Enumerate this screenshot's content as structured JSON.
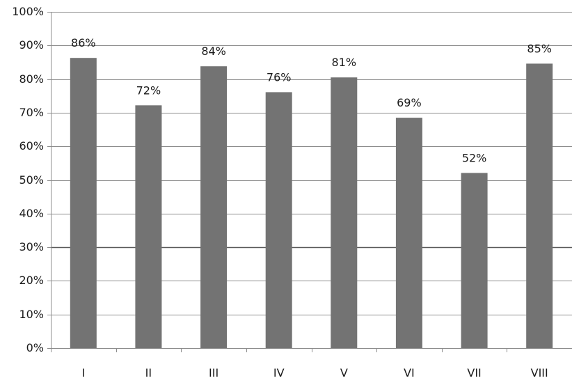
{
  "chart_data": {
    "type": "bar",
    "categories": [
      "I",
      "II",
      "III",
      "IV",
      "V",
      "VI",
      "VII",
      "VIII"
    ],
    "values": [
      86.3,
      72.2,
      83.8,
      76.1,
      80.5,
      68.5,
      52.1,
      84.6
    ],
    "data_labels": [
      "86%",
      "72%",
      "84%",
      "76%",
      "81%",
      "69%",
      "52%",
      "85%"
    ],
    "ylim": [
      0,
      100
    ],
    "yticks": [
      0,
      10,
      20,
      30,
      40,
      50,
      60,
      70,
      80,
      90,
      100
    ],
    "ytick_labels": [
      "0%",
      "10%",
      "20%",
      "30%",
      "40%",
      "50%",
      "60%",
      "70%",
      "80%",
      "90%",
      "100%"
    ],
    "emphasized_gridline": 30,
    "grid": true,
    "legend": "none",
    "title": "",
    "xlabel": "",
    "ylabel": "",
    "bar_color": "#737373"
  }
}
